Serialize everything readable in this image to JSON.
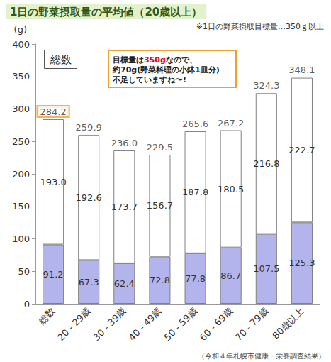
{
  "chart_data": {
    "type": "bar",
    "title": "1日の野菜摂取量の平均値（20歳以上）",
    "subtitle": "※1日の野菜摂取目標量…350ｇ以上",
    "y_label": "(g)",
    "panel_label": "総数",
    "annotation": [
      "目標量は350gなので、",
      "約70g(野菜料理の小鉢1皿分)",
      "不足していますね〜!"
    ],
    "source": "（令和４年札幌市健康・栄養調査結果）",
    "categories": [
      "総数",
      "20 - 29歳",
      "30 - 39歳",
      "40 - 49歳",
      "50 - 59歳",
      "60 - 69歳",
      "70 - 79歳",
      "80歳以上"
    ],
    "series": [
      {
        "color": "#b4b4ec",
        "values": [
          91.2,
          67.3,
          62.4,
          72.8,
          77.8,
          86.7,
          107.5,
          125.3
        ]
      },
      {
        "color": "#ffffff",
        "values": [
          193.0,
          192.6,
          173.7,
          156.7,
          187.8,
          180.5,
          216.8,
          222.7
        ],
        "value_labels": [
          "193.0",
          "192.6",
          "173.7",
          "156.7",
          "187.8",
          "180.5",
          "216.8",
          "222.7"
        ]
      }
    ],
    "totals": [
      284.2,
      259.9,
      236.0,
      229.5,
      265.6,
      267.2,
      324.3,
      348.1
    ],
    "total_labels": [
      "284.2",
      "259.9",
      "236.0",
      "229.5",
      "265.6",
      "267.2",
      "324.3",
      "348.1"
    ],
    "ylim": [
      0,
      400
    ],
    "yticks": [
      0,
      50,
      100,
      150,
      200,
      250,
      300,
      350,
      400
    ],
    "stacked": true,
    "data_labels": true,
    "grid": false
  }
}
